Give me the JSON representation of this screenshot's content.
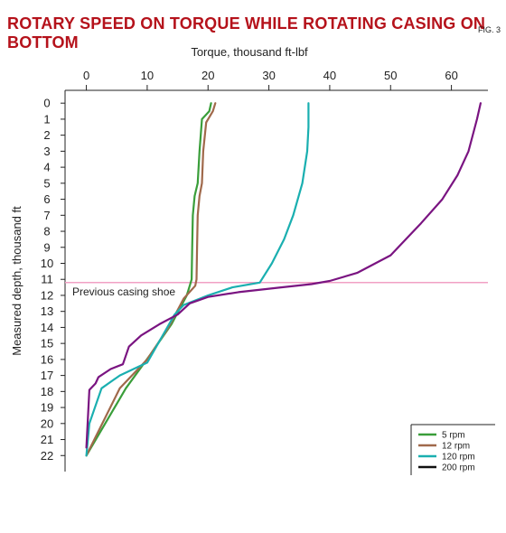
{
  "header": {
    "title": "ROTARY SPEED ON TORQUE WHILE ROTATING CASING ON BOTTOM",
    "fig_label": "FIG. 3"
  },
  "chart_data": {
    "type": "line",
    "title": "ROTARY SPEED ON TORQUE WHILE ROTATING CASING ON BOTTOM",
    "xlabel": "Torque, thousand ft-lbf",
    "ylabel": "Measured depth, thousand ft",
    "xlim": [
      -3.5,
      66
    ],
    "ylim": [
      23,
      -0.8
    ],
    "x_axis_position": "top",
    "y_inverted": true,
    "x_ticks": [
      0,
      10,
      20,
      30,
      40,
      50,
      60
    ],
    "y_ticks": [
      0,
      1,
      2,
      3,
      4,
      5,
      6,
      7,
      8,
      9,
      10,
      11,
      12,
      13,
      14,
      15,
      16,
      17,
      18,
      19,
      20,
      21,
      22
    ],
    "grid": false,
    "legend_position": "bottom-right",
    "annotations": [
      {
        "text": "Previous casing shoe",
        "y": 11.2,
        "color": "#f2a0c4"
      }
    ],
    "series": [
      {
        "name": "5 rpm",
        "color": "#3a9e3a",
        "points": [
          [
            20.5,
            0
          ],
          [
            20.2,
            0.5
          ],
          [
            19,
            1
          ],
          [
            18.6,
            3
          ],
          [
            18.3,
            5
          ],
          [
            17.8,
            5.8
          ],
          [
            17.5,
            7
          ],
          [
            17.4,
            9
          ],
          [
            17.3,
            11
          ],
          [
            17.0,
            11.4
          ],
          [
            16.5,
            12.0
          ],
          [
            14,
            13.8
          ],
          [
            10.5,
            15.7
          ],
          [
            6.5,
            17.8
          ],
          [
            0,
            22
          ]
        ]
      },
      {
        "name": "12 rpm",
        "color": "#a0694b",
        "points": [
          [
            21.2,
            0
          ],
          [
            20.8,
            0.5
          ],
          [
            19.7,
            1.2
          ],
          [
            19.2,
            3
          ],
          [
            19,
            5
          ],
          [
            18.6,
            5.8
          ],
          [
            18.3,
            7
          ],
          [
            18.2,
            9
          ],
          [
            18.1,
            11
          ],
          [
            17.9,
            11.4
          ],
          [
            16,
            12.2
          ],
          [
            13.5,
            14
          ],
          [
            10,
            16
          ],
          [
            5.5,
            17.8
          ],
          [
            0,
            22
          ]
        ]
      },
      {
        "name": "120 rpm",
        "color": "#1aafb0",
        "points": [
          [
            36.5,
            0
          ],
          [
            36.5,
            1.5
          ],
          [
            36.3,
            3
          ],
          [
            35.5,
            5
          ],
          [
            34,
            7
          ],
          [
            32.5,
            8.5
          ],
          [
            30.5,
            10
          ],
          [
            28.5,
            11.2
          ],
          [
            24,
            11.5
          ],
          [
            20,
            12
          ],
          [
            16,
            12.6
          ],
          [
            14.5,
            13.2
          ],
          [
            13,
            14.2
          ],
          [
            10,
            16.2
          ],
          [
            5.5,
            17
          ],
          [
            2.5,
            17.8
          ],
          [
            0.5,
            20
          ],
          [
            0,
            22
          ]
        ]
      },
      {
        "name": "200 rpm",
        "color": "#7a1481",
        "points": [
          [
            64.8,
            0
          ],
          [
            64.2,
            1
          ],
          [
            62.8,
            3
          ],
          [
            61,
            4.5
          ],
          [
            58.5,
            6
          ],
          [
            55,
            7.5
          ],
          [
            50,
            9.5
          ],
          [
            44.5,
            10.6
          ],
          [
            40,
            11.1
          ],
          [
            37,
            11.3
          ],
          [
            32,
            11.5
          ],
          [
            25,
            11.8
          ],
          [
            20,
            12.1
          ],
          [
            17,
            12.5
          ],
          [
            15,
            13.2
          ],
          [
            12,
            13.8
          ],
          [
            9,
            14.5
          ],
          [
            7,
            15.2
          ],
          [
            6,
            16.3
          ],
          [
            4,
            16.6
          ],
          [
            2,
            17.1
          ],
          [
            1.5,
            17.5
          ],
          [
            0.5,
            17.9
          ],
          [
            0,
            21.5
          ]
        ]
      }
    ]
  }
}
